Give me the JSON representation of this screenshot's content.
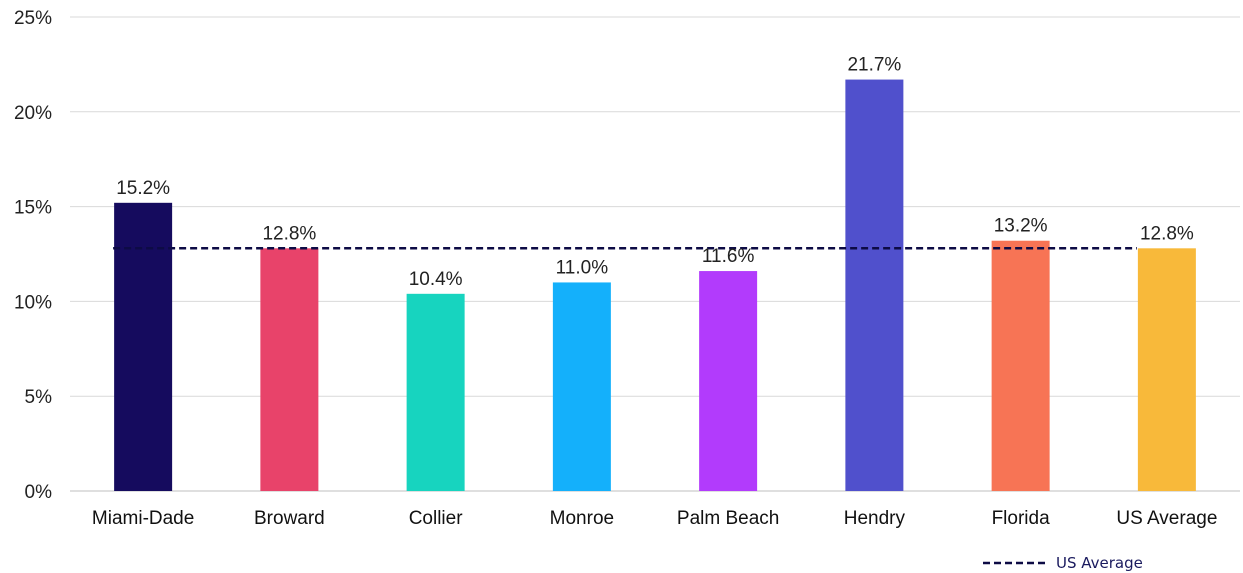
{
  "chart_data": {
    "type": "bar",
    "title": "",
    "xlabel": "",
    "ylabel": "",
    "categories": [
      "Miami-Dade",
      "Broward",
      "Collier",
      "Monroe",
      "Palm Beach",
      "Hendry",
      "Florida",
      "US Average"
    ],
    "values": [
      15.2,
      12.8,
      10.4,
      11.0,
      11.6,
      21.7,
      13.2,
      12.8
    ],
    "data_labels": [
      "15.2%",
      "12.8%",
      "10.4%",
      "11.0%",
      "11.6%",
      "21.7%",
      "13.2%",
      "12.8%"
    ],
    "bar_colors": [
      "#150b5e",
      "#e8436a",
      "#17d4bf",
      "#14b0fb",
      "#b23bfc",
      "#5050cc",
      "#f77455",
      "#f8b93a"
    ],
    "ylim": [
      0,
      25
    ],
    "yticks": [
      0,
      5,
      10,
      15,
      20,
      25
    ],
    "ytick_labels": [
      "0%",
      "5%",
      "10%",
      "15%",
      "20%",
      "25%"
    ],
    "grid": true,
    "reference_line": {
      "name": "US Average",
      "value": 12.8,
      "style": "dashed",
      "color": "#0d0b45"
    },
    "legend": {
      "position": "bottom-right",
      "entries": [
        "US Average"
      ]
    }
  }
}
